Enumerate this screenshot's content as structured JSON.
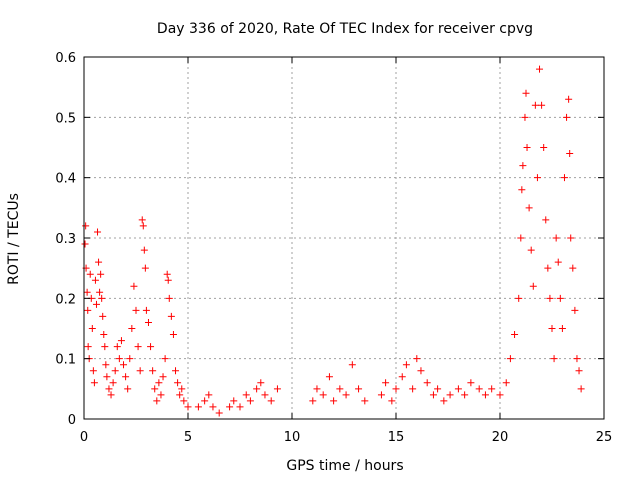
{
  "chart_data": {
    "type": "scatter",
    "title": "Day 336 of 2020, Rate Of TEC Index for receiver cpvg",
    "xlabel": "GPS time / hours",
    "ylabel": "ROTI / TECUs",
    "xlim": [
      0,
      25
    ],
    "ylim": [
      0,
      0.6
    ],
    "xticks": [
      0,
      5,
      10,
      15,
      20,
      25
    ],
    "yticks": [
      0,
      0.1,
      0.2,
      0.3,
      0.4,
      0.5,
      0.6
    ],
    "grid": true,
    "marker": "+",
    "color": "#ff0000",
    "series": [
      {
        "points": [
          [
            0.05,
            0.29
          ],
          [
            0.08,
            0.32
          ],
          [
            0.1,
            0.25
          ],
          [
            0.15,
            0.21
          ],
          [
            0.18,
            0.18
          ],
          [
            0.2,
            0.12
          ],
          [
            0.25,
            0.1
          ],
          [
            0.3,
            0.24
          ],
          [
            0.35,
            0.2
          ],
          [
            0.4,
            0.15
          ],
          [
            0.45,
            0.08
          ],
          [
            0.5,
            0.06
          ],
          [
            0.55,
            0.23
          ],
          [
            0.6,
            0.19
          ],
          [
            0.65,
            0.31
          ],
          [
            0.7,
            0.26
          ],
          [
            0.75,
            0.21
          ],
          [
            0.8,
            0.24
          ],
          [
            0.85,
            0.2
          ],
          [
            0.9,
            0.17
          ],
          [
            0.95,
            0.14
          ],
          [
            1.0,
            0.12
          ],
          [
            1.05,
            0.09
          ],
          [
            1.1,
            0.07
          ],
          [
            1.2,
            0.05
          ],
          [
            1.3,
            0.04
          ],
          [
            1.4,
            0.06
          ],
          [
            1.5,
            0.08
          ],
          [
            1.6,
            0.12
          ],
          [
            1.7,
            0.1
          ],
          [
            1.8,
            0.13
          ],
          [
            1.9,
            0.09
          ],
          [
            2.0,
            0.07
          ],
          [
            2.1,
            0.05
          ],
          [
            2.2,
            0.1
          ],
          [
            2.3,
            0.15
          ],
          [
            2.4,
            0.22
          ],
          [
            2.5,
            0.18
          ],
          [
            2.6,
            0.12
          ],
          [
            2.7,
            0.08
          ],
          [
            2.8,
            0.33
          ],
          [
            2.85,
            0.32
          ],
          [
            2.9,
            0.28
          ],
          [
            2.95,
            0.25
          ],
          [
            3.0,
            0.18
          ],
          [
            3.1,
            0.16
          ],
          [
            3.2,
            0.12
          ],
          [
            3.3,
            0.08
          ],
          [
            3.4,
            0.05
          ],
          [
            3.5,
            0.03
          ],
          [
            3.6,
            0.06
          ],
          [
            3.7,
            0.04
          ],
          [
            3.8,
            0.07
          ],
          [
            3.9,
            0.1
          ],
          [
            4.0,
            0.24
          ],
          [
            4.05,
            0.23
          ],
          [
            4.1,
            0.2
          ],
          [
            4.2,
            0.17
          ],
          [
            4.3,
            0.14
          ],
          [
            4.4,
            0.08
          ],
          [
            4.5,
            0.06
          ],
          [
            4.6,
            0.04
          ],
          [
            4.7,
            0.05
          ],
          [
            4.8,
            0.03
          ],
          [
            5.0,
            0.02
          ],
          [
            5.5,
            0.02
          ],
          [
            5.8,
            0.03
          ],
          [
            6.0,
            0.04
          ],
          [
            6.2,
            0.02
          ],
          [
            6.5,
            0.01
          ],
          [
            7.0,
            0.02
          ],
          [
            7.2,
            0.03
          ],
          [
            7.5,
            0.02
          ],
          [
            7.8,
            0.04
          ],
          [
            8.0,
            0.03
          ],
          [
            8.3,
            0.05
          ],
          [
            8.5,
            0.06
          ],
          [
            8.7,
            0.04
          ],
          [
            9.0,
            0.03
          ],
          [
            9.3,
            0.05
          ],
          [
            11.0,
            0.03
          ],
          [
            11.2,
            0.05
          ],
          [
            11.5,
            0.04
          ],
          [
            11.8,
            0.07
          ],
          [
            12.0,
            0.03
          ],
          [
            12.3,
            0.05
          ],
          [
            12.6,
            0.04
          ],
          [
            12.9,
            0.09
          ],
          [
            13.2,
            0.05
          ],
          [
            13.5,
            0.03
          ],
          [
            14.3,
            0.04
          ],
          [
            14.5,
            0.06
          ],
          [
            14.8,
            0.03
          ],
          [
            15.0,
            0.05
          ],
          [
            15.3,
            0.07
          ],
          [
            15.5,
            0.09
          ],
          [
            15.8,
            0.05
          ],
          [
            16.0,
            0.1
          ],
          [
            16.2,
            0.08
          ],
          [
            16.5,
            0.06
          ],
          [
            16.8,
            0.04
          ],
          [
            17.0,
            0.05
          ],
          [
            17.3,
            0.03
          ],
          [
            17.6,
            0.04
          ],
          [
            18.0,
            0.05
          ],
          [
            18.3,
            0.04
          ],
          [
            18.6,
            0.06
          ],
          [
            19.0,
            0.05
          ],
          [
            19.3,
            0.04
          ],
          [
            19.6,
            0.05
          ],
          [
            20.0,
            0.04
          ],
          [
            20.3,
            0.06
          ],
          [
            20.5,
            0.1
          ],
          [
            20.7,
            0.14
          ],
          [
            20.9,
            0.2
          ],
          [
            21.0,
            0.3
          ],
          [
            21.05,
            0.38
          ],
          [
            21.1,
            0.42
          ],
          [
            21.2,
            0.5
          ],
          [
            21.25,
            0.54
          ],
          [
            21.3,
            0.45
          ],
          [
            21.4,
            0.35
          ],
          [
            21.5,
            0.28
          ],
          [
            21.6,
            0.22
          ],
          [
            21.7,
            0.52
          ],
          [
            21.8,
            0.4
          ],
          [
            21.9,
            0.58
          ],
          [
            22.0,
            0.52
          ],
          [
            22.1,
            0.45
          ],
          [
            22.2,
            0.33
          ],
          [
            22.3,
            0.25
          ],
          [
            22.4,
            0.2
          ],
          [
            22.5,
            0.15
          ],
          [
            22.6,
            0.1
          ],
          [
            22.7,
            0.3
          ],
          [
            22.8,
            0.26
          ],
          [
            22.9,
            0.2
          ],
          [
            23.0,
            0.15
          ],
          [
            23.1,
            0.4
          ],
          [
            23.2,
            0.5
          ],
          [
            23.3,
            0.53
          ],
          [
            23.35,
            0.44
          ],
          [
            23.4,
            0.3
          ],
          [
            23.5,
            0.25
          ],
          [
            23.6,
            0.18
          ],
          [
            23.7,
            0.1
          ],
          [
            23.8,
            0.08
          ],
          [
            23.9,
            0.05
          ]
        ]
      }
    ]
  }
}
